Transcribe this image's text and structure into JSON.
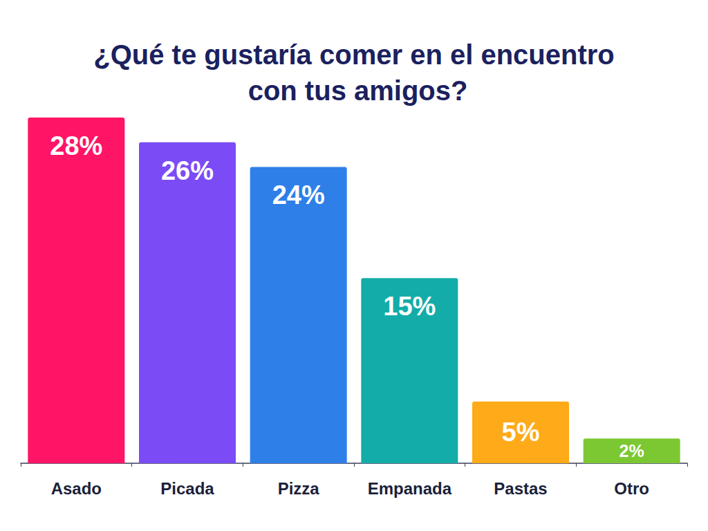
{
  "chart_data": {
    "type": "bar",
    "title": "¿Qué te gustaría comer en el encuentro con tus amigos?",
    "categories": [
      "Asado",
      "Picada",
      "Pizza",
      "Empanada",
      "Pastas",
      "Otro"
    ],
    "values": [
      28,
      26,
      24,
      15,
      5,
      2
    ],
    "value_labels": [
      "28%",
      "26%",
      "24%",
      "15%",
      "5%",
      "2%"
    ],
    "colors": [
      "#ff1466",
      "#7b4cf5",
      "#2f7fe8",
      "#14aca8",
      "#ffaa18",
      "#7cc832"
    ],
    "ylim": [
      0,
      28
    ],
    "grid": false,
    "data_labels": true,
    "tick_labels": "x"
  }
}
